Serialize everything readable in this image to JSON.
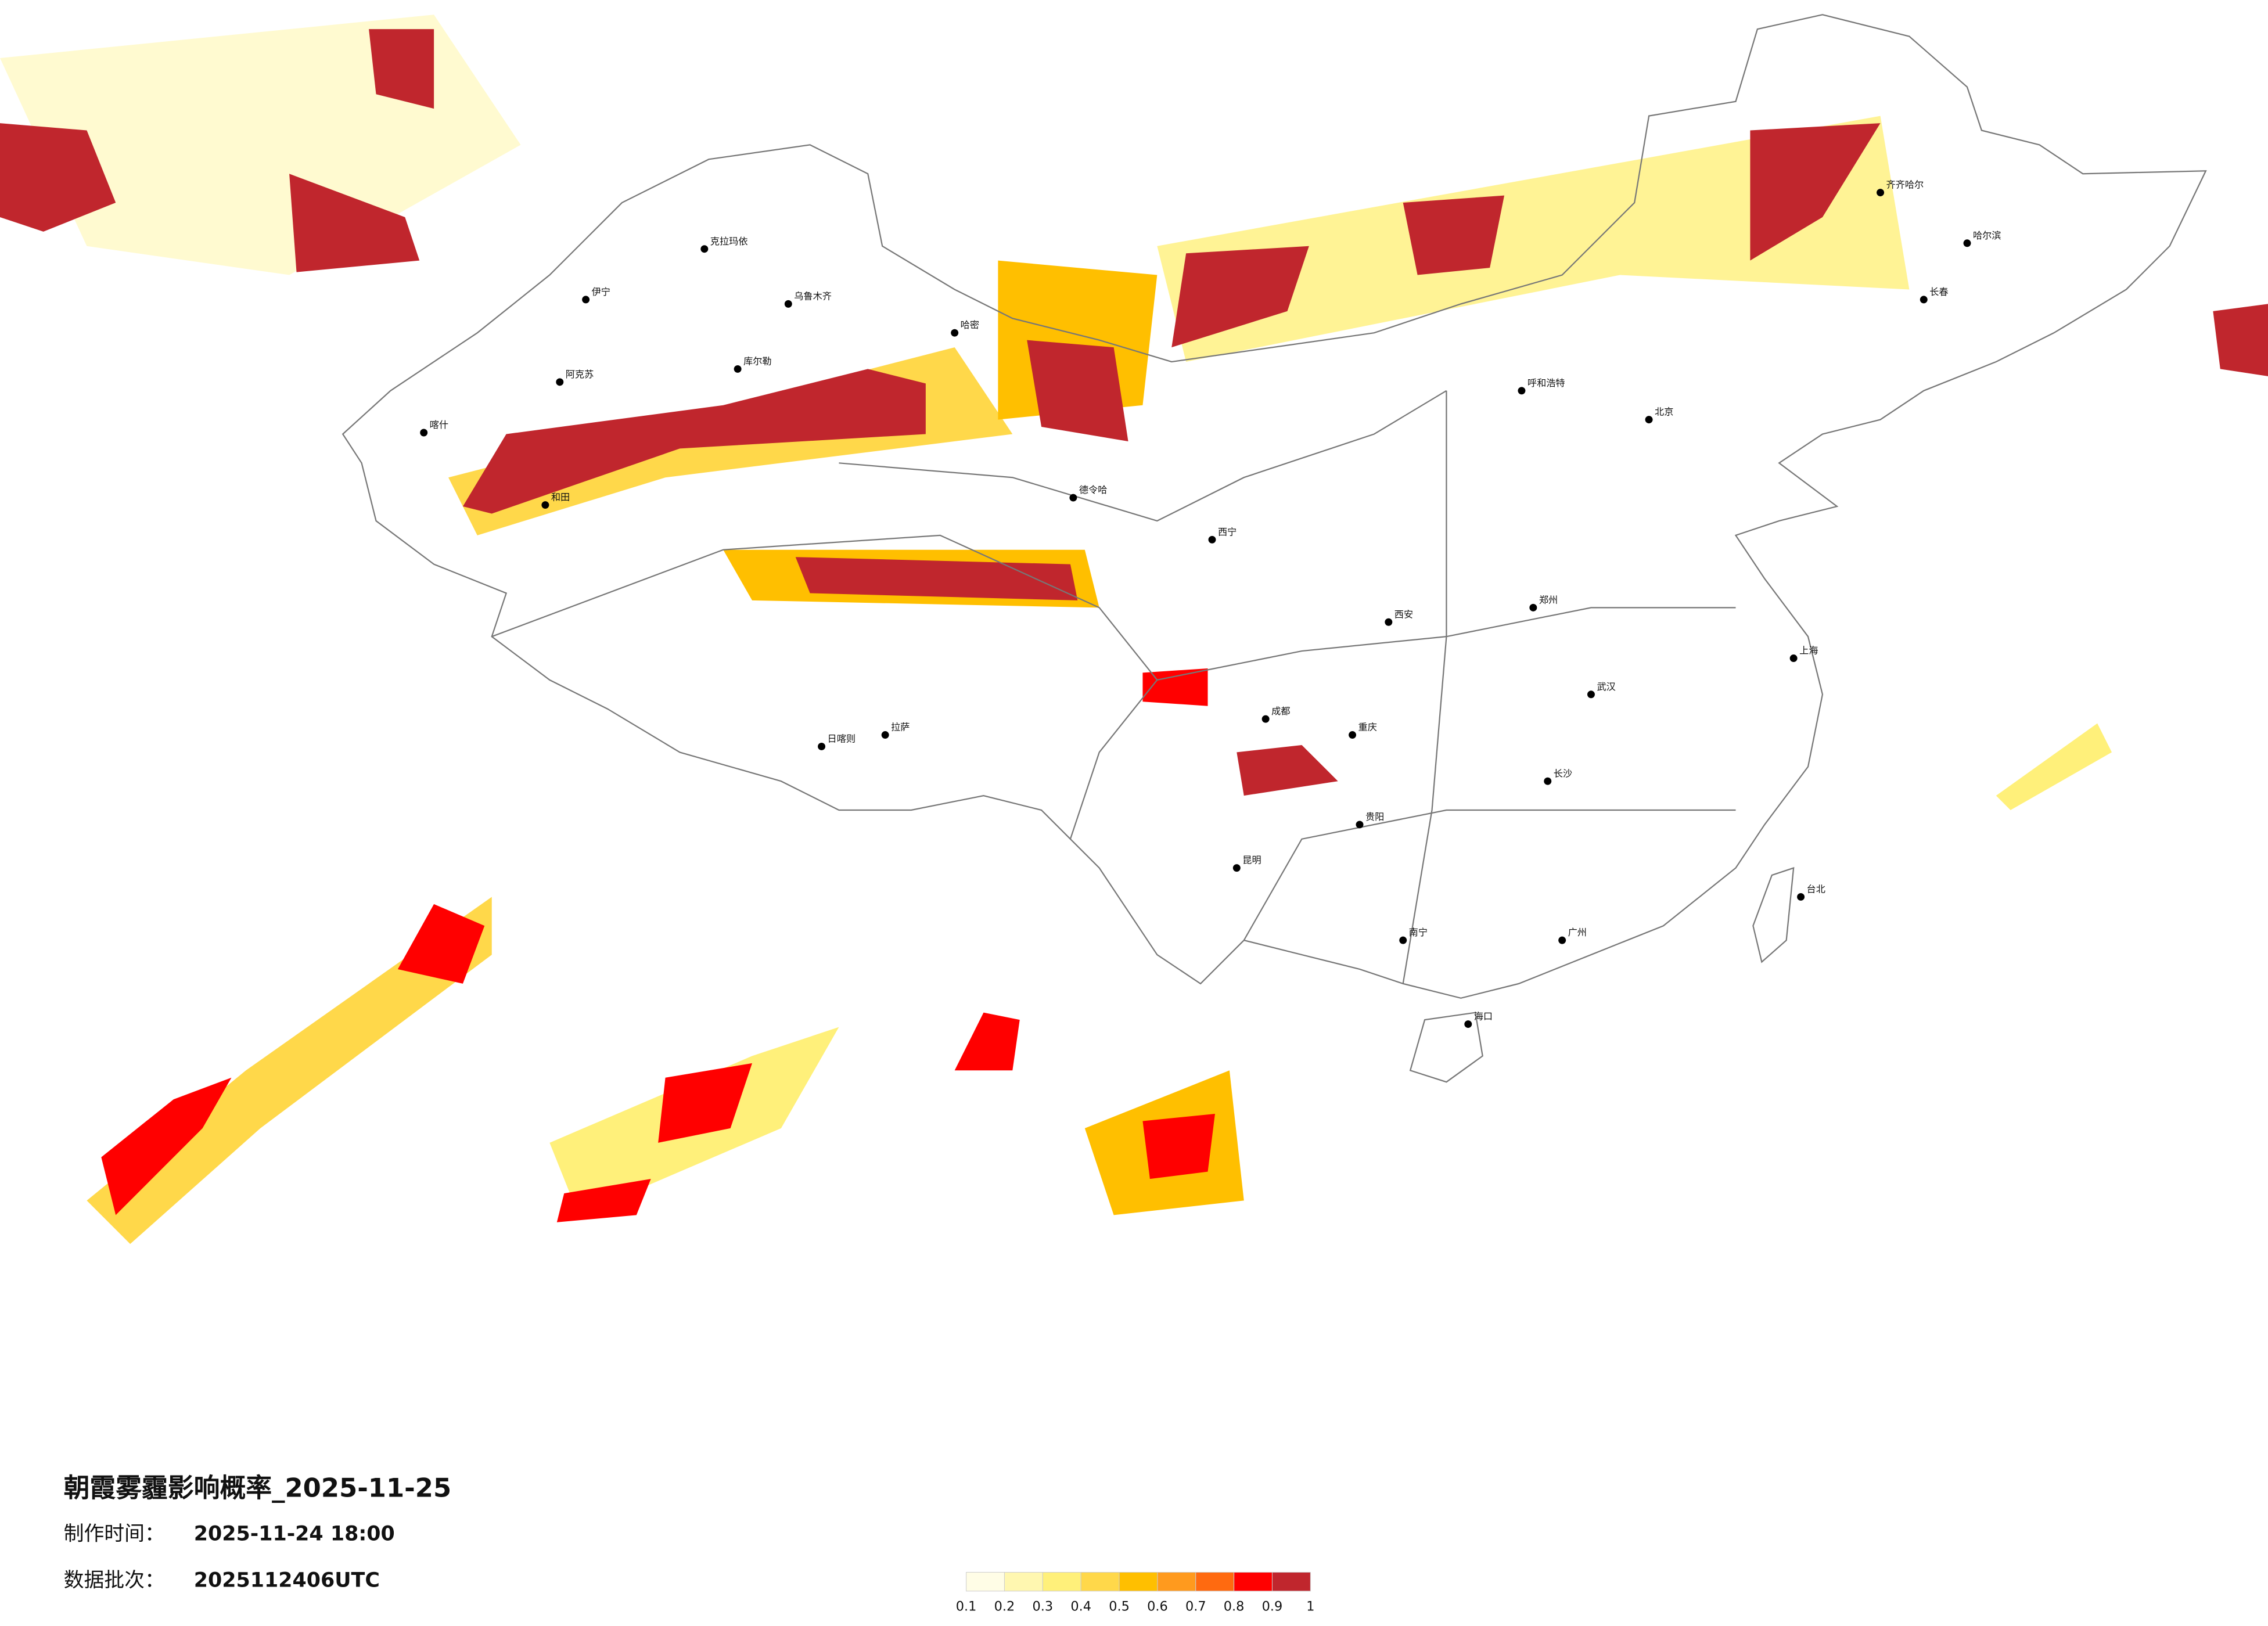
{
  "title": "朝霞雾霾影响概率_2025-11-25",
  "made_time": {
    "label": "制作时间：",
    "value": "2025-11-24 18:00"
  },
  "batch": {
    "label": "数据批次：",
    "value": "2025112406UTC"
  },
  "legend": {
    "colors": [
      "#fffde6",
      "#fff7b0",
      "#fff07a",
      "#ffd84a",
      "#ffbf00",
      "#ff9a1e",
      "#ff6a10",
      "#ff0000",
      "#c0262d"
    ],
    "ticks": [
      0.1,
      0.2,
      0.3,
      0.4,
      0.5,
      0.6,
      0.7,
      0.8,
      0.9,
      1
    ]
  },
  "cities": [
    "克拉玛依",
    "乌鲁木齐",
    "伊宁",
    "库尔勒",
    "阿克苏",
    "和田",
    "喀什",
    "哈密",
    "德令哈",
    "拉萨",
    "日喀则",
    "西宁",
    "呼和浩特",
    "北京",
    "哈尔滨",
    "长春",
    "齐齐哈尔",
    "成都",
    "重庆",
    "贵阳",
    "昆明",
    "南宁",
    "广州",
    "武汉",
    "上海",
    "台北",
    "海口",
    "郑州",
    "西安",
    "长沙"
  ]
}
